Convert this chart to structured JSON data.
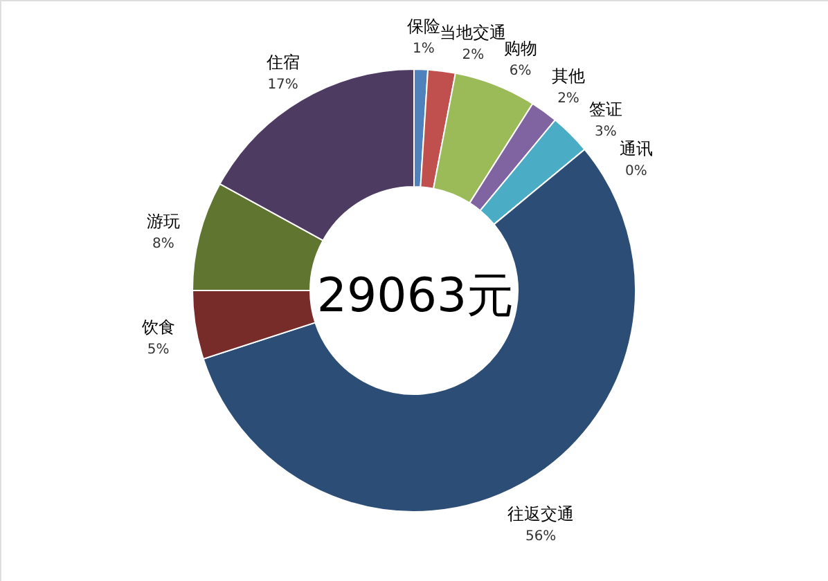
{
  "chart_data": {
    "type": "donut",
    "categories": [
      "保险",
      "当地交通",
      "购物",
      "其他",
      "签证",
      "通讯",
      "往返交通",
      "饮食",
      "游玩",
      "住宿"
    ],
    "values": [
      1,
      2,
      6,
      2,
      3,
      0,
      56,
      5,
      8,
      17
    ],
    "value_labels": [
      "1%",
      "2%",
      "6%",
      "2%",
      "3%",
      "0%",
      "56%",
      "5%",
      "8%",
      "17%"
    ],
    "colors": [
      "#4f81bd",
      "#c0504d",
      "#9bbb59",
      "#8064a2",
      "#4bacc6",
      "#f79646",
      "#2c4d75",
      "#772c2a",
      "#5f7530",
      "#4d3b62"
    ],
    "annotations": [
      "29063元"
    ]
  }
}
